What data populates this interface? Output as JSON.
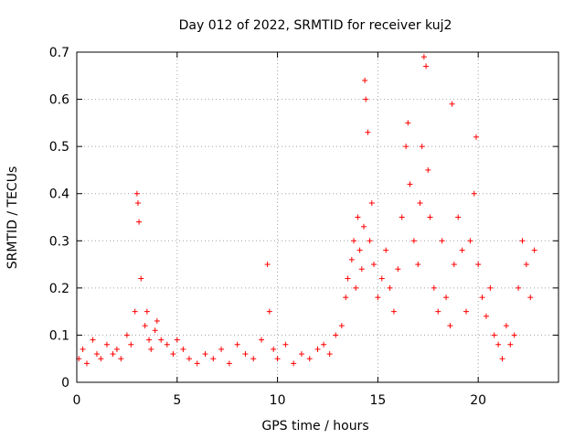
{
  "chart_data": {
    "type": "scatter",
    "title": "Day 012 of 2022, SRMTID for receiver kuj2",
    "xlabel": "GPS time / hours",
    "ylabel": "SRMTID / TECUs",
    "xlim": [
      0,
      24
    ],
    "ylim": [
      0,
      0.7
    ],
    "xticks": [
      0,
      5,
      10,
      15,
      20
    ],
    "yticks": [
      0,
      0.1,
      0.2,
      0.3,
      0.4,
      0.5,
      0.6,
      0.7
    ],
    "grid": true,
    "marker": "plus",
    "color": "#ff0000",
    "series": [
      {
        "name": "kuj2",
        "x": [
          0.1,
          0.3,
          0.5,
          0.8,
          1.0,
          1.2,
          1.5,
          1.8,
          2.0,
          2.2,
          2.5,
          2.7,
          2.9,
          3.0,
          3.05,
          3.1,
          3.2,
          3.4,
          3.5,
          3.6,
          3.7,
          3.9,
          4.0,
          4.2,
          4.5,
          4.8,
          5.0,
          5.3,
          5.6,
          6.0,
          6.4,
          6.8,
          7.2,
          7.6,
          8.0,
          8.4,
          8.8,
          9.2,
          9.5,
          9.6,
          9.8,
          10.0,
          10.4,
          10.8,
          11.2,
          11.6,
          12.0,
          12.3,
          12.6,
          12.9,
          13.2,
          13.4,
          13.5,
          13.7,
          13.8,
          13.9,
          14.0,
          14.1,
          14.2,
          14.3,
          14.35,
          14.4,
          14.5,
          14.6,
          14.7,
          14.8,
          15.0,
          15.2,
          15.4,
          15.6,
          15.8,
          16.0,
          16.2,
          16.4,
          16.5,
          16.6,
          16.8,
          17.0,
          17.1,
          17.2,
          17.3,
          17.4,
          17.5,
          17.6,
          17.8,
          18.0,
          18.2,
          18.4,
          18.6,
          18.7,
          18.8,
          19.0,
          19.2,
          19.4,
          19.6,
          19.8,
          19.9,
          20.0,
          20.2,
          20.4,
          20.6,
          20.8,
          21.0,
          21.2,
          21.4,
          21.6,
          21.8,
          22.0,
          22.2,
          22.4,
          22.6,
          22.8
        ],
        "y": [
          0.05,
          0.07,
          0.04,
          0.09,
          0.06,
          0.05,
          0.08,
          0.06,
          0.07,
          0.05,
          0.1,
          0.08,
          0.15,
          0.4,
          0.38,
          0.34,
          0.22,
          0.12,
          0.15,
          0.09,
          0.07,
          0.11,
          0.13,
          0.09,
          0.08,
          0.06,
          0.09,
          0.07,
          0.05,
          0.04,
          0.06,
          0.05,
          0.07,
          0.04,
          0.08,
          0.06,
          0.05,
          0.09,
          0.25,
          0.15,
          0.07,
          0.05,
          0.08,
          0.04,
          0.06,
          0.05,
          0.07,
          0.08,
          0.06,
          0.1,
          0.12,
          0.18,
          0.22,
          0.26,
          0.3,
          0.2,
          0.35,
          0.28,
          0.24,
          0.33,
          0.64,
          0.6,
          0.53,
          0.3,
          0.38,
          0.25,
          0.18,
          0.22,
          0.28,
          0.2,
          0.15,
          0.24,
          0.35,
          0.5,
          0.55,
          0.42,
          0.3,
          0.25,
          0.38,
          0.5,
          0.69,
          0.67,
          0.45,
          0.35,
          0.2,
          0.15,
          0.3,
          0.18,
          0.12,
          0.59,
          0.25,
          0.35,
          0.28,
          0.15,
          0.3,
          0.4,
          0.52,
          0.25,
          0.18,
          0.14,
          0.2,
          0.1,
          0.08,
          0.05,
          0.12,
          0.08,
          0.1,
          0.2,
          0.3,
          0.25,
          0.18,
          0.28
        ]
      }
    ]
  }
}
